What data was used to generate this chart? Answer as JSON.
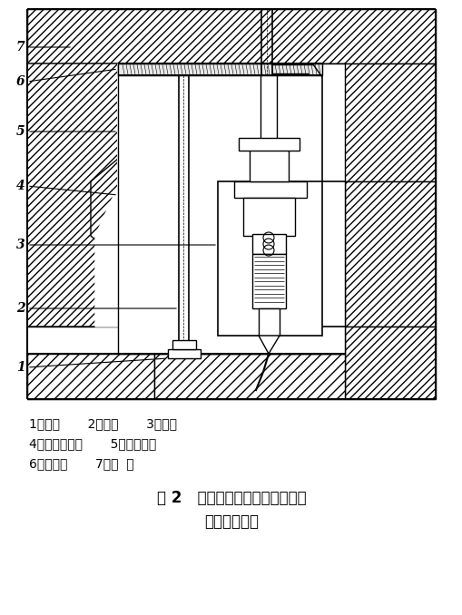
{
  "fig_width": 5.1,
  "fig_height": 6.78,
  "dpi": 100,
  "bg_color": "#ffffff",
  "line_color": "#000000",
  "caption_line1": "1－引线       2－插头       3－顶杆",
  "caption_line2": "4－压力传感器       5－感压膜片",
  "caption_line3": "6－传压杆       7－制  品",
  "figure_label": "图 2   设有模内压力检测装置的模",
  "figure_label2": "具结构示意图"
}
